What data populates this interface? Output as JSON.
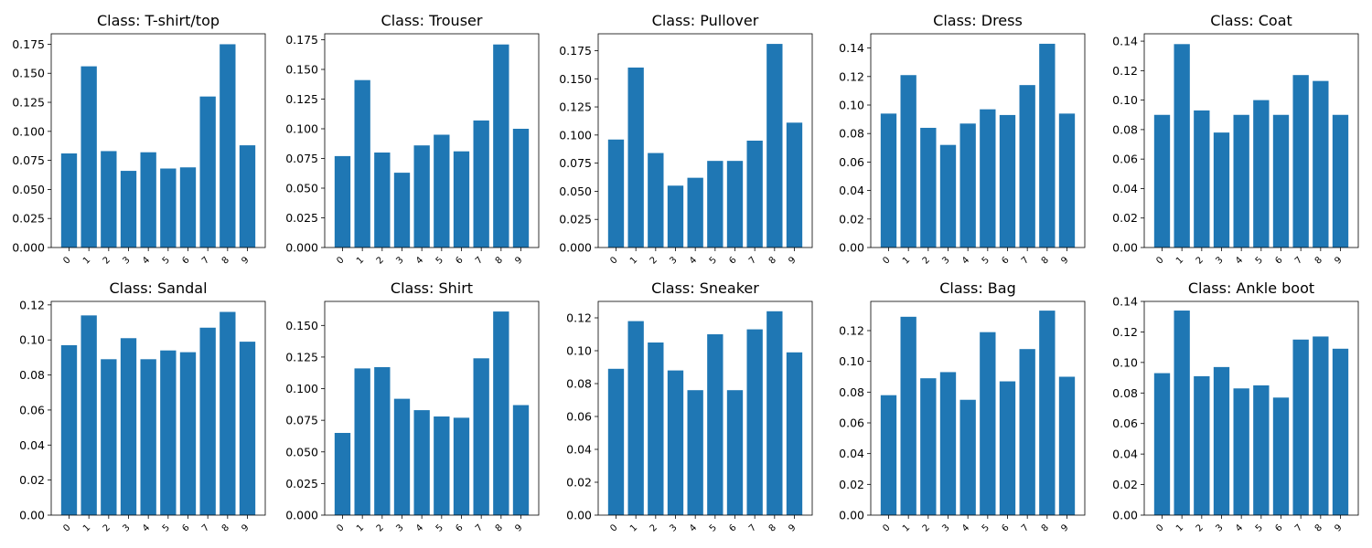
{
  "figure": {
    "background": "#ffffff",
    "bar_color": "#1f77b4"
  },
  "chart_data": [
    {
      "type": "bar",
      "title": "Class: T-shirt/top",
      "xlabel": "",
      "ylabel": "",
      "categories": [
        "0",
        "1",
        "2",
        "3",
        "4",
        "5",
        "6",
        "7",
        "8",
        "9"
      ],
      "values": [
        0.081,
        0.156,
        0.083,
        0.066,
        0.082,
        0.068,
        0.069,
        0.13,
        0.175,
        0.088
      ],
      "ylim": [
        0,
        0.184
      ],
      "yticks": [
        0.0,
        0.025,
        0.05,
        0.075,
        0.1,
        0.125,
        0.15,
        0.175
      ],
      "ytick_labels": [
        "0.000",
        "0.025",
        "0.050",
        "0.075",
        "0.100",
        "0.125",
        "0.150",
        "0.175"
      ]
    },
    {
      "type": "bar",
      "title": "Class: Trouser",
      "xlabel": "",
      "ylabel": "",
      "categories": [
        "0",
        "1",
        "2",
        "3",
        "4",
        "5",
        "6",
        "7",
        "8",
        "9"
      ],
      "values": [
        0.077,
        0.141,
        0.08,
        0.063,
        0.086,
        0.095,
        0.081,
        0.107,
        0.171,
        0.1
      ],
      "ylim": [
        0,
        0.18
      ],
      "yticks": [
        0.0,
        0.025,
        0.05,
        0.075,
        0.1,
        0.125,
        0.15,
        0.175
      ],
      "ytick_labels": [
        "0.000",
        "0.025",
        "0.050",
        "0.075",
        "0.100",
        "0.125",
        "0.150",
        "0.175"
      ]
    },
    {
      "type": "bar",
      "title": "Class: Pullover",
      "xlabel": "",
      "ylabel": "",
      "categories": [
        "0",
        "1",
        "2",
        "3",
        "4",
        "5",
        "6",
        "7",
        "8",
        "9"
      ],
      "values": [
        0.096,
        0.16,
        0.084,
        0.055,
        0.062,
        0.077,
        0.077,
        0.095,
        0.181,
        0.111
      ],
      "ylim": [
        0,
        0.19
      ],
      "yticks": [
        0.0,
        0.025,
        0.05,
        0.075,
        0.1,
        0.125,
        0.15,
        0.175
      ],
      "ytick_labels": [
        "0.000",
        "0.025",
        "0.050",
        "0.075",
        "0.100",
        "0.125",
        "0.150",
        "0.175"
      ]
    },
    {
      "type": "bar",
      "title": "Class: Dress",
      "xlabel": "",
      "ylabel": "",
      "categories": [
        "0",
        "1",
        "2",
        "3",
        "4",
        "5",
        "6",
        "7",
        "8",
        "9"
      ],
      "values": [
        0.094,
        0.121,
        0.084,
        0.072,
        0.087,
        0.097,
        0.093,
        0.114,
        0.143,
        0.094
      ],
      "ylim": [
        0,
        0.15
      ],
      "yticks": [
        0.0,
        0.02,
        0.04,
        0.06,
        0.08,
        0.1,
        0.12,
        0.14
      ],
      "ytick_labels": [
        "0.00",
        "0.02",
        "0.04",
        "0.06",
        "0.08",
        "0.10",
        "0.12",
        "0.14"
      ]
    },
    {
      "type": "bar",
      "title": "Class: Coat",
      "xlabel": "",
      "ylabel": "",
      "categories": [
        "0",
        "1",
        "2",
        "3",
        "4",
        "5",
        "6",
        "7",
        "8",
        "9"
      ],
      "values": [
        0.09,
        0.138,
        0.093,
        0.078,
        0.09,
        0.1,
        0.09,
        0.117,
        0.113,
        0.09
      ],
      "ylim": [
        0,
        0.145
      ],
      "yticks": [
        0.0,
        0.02,
        0.04,
        0.06,
        0.08,
        0.1,
        0.12,
        0.14
      ],
      "ytick_labels": [
        "0.00",
        "0.02",
        "0.04",
        "0.06",
        "0.08",
        "0.10",
        "0.12",
        "0.14"
      ]
    },
    {
      "type": "bar",
      "title": "Class: Sandal",
      "xlabel": "",
      "ylabel": "",
      "categories": [
        "0",
        "1",
        "2",
        "3",
        "4",
        "5",
        "6",
        "7",
        "8",
        "9"
      ],
      "values": [
        0.097,
        0.114,
        0.089,
        0.101,
        0.089,
        0.094,
        0.093,
        0.107,
        0.116,
        0.099
      ],
      "ylim": [
        0,
        0.122
      ],
      "yticks": [
        0.0,
        0.02,
        0.04,
        0.06,
        0.08,
        0.1,
        0.12
      ],
      "ytick_labels": [
        "0.00",
        "0.02",
        "0.04",
        "0.06",
        "0.08",
        "0.10",
        "0.12"
      ]
    },
    {
      "type": "bar",
      "title": "Class: Shirt",
      "xlabel": "",
      "ylabel": "",
      "categories": [
        "0",
        "1",
        "2",
        "3",
        "4",
        "5",
        "6",
        "7",
        "8",
        "9"
      ],
      "values": [
        0.065,
        0.116,
        0.117,
        0.092,
        0.083,
        0.078,
        0.077,
        0.124,
        0.161,
        0.087
      ],
      "ylim": [
        0,
        0.169
      ],
      "yticks": [
        0.0,
        0.025,
        0.05,
        0.075,
        0.1,
        0.125,
        0.15
      ],
      "ytick_labels": [
        "0.000",
        "0.025",
        "0.050",
        "0.075",
        "0.100",
        "0.125",
        "0.150"
      ]
    },
    {
      "type": "bar",
      "title": "Class: Sneaker",
      "xlabel": "",
      "ylabel": "",
      "categories": [
        "0",
        "1",
        "2",
        "3",
        "4",
        "5",
        "6",
        "7",
        "8",
        "9"
      ],
      "values": [
        0.089,
        0.118,
        0.105,
        0.088,
        0.076,
        0.11,
        0.076,
        0.113,
        0.124,
        0.099
      ],
      "ylim": [
        0,
        0.13
      ],
      "yticks": [
        0.0,
        0.02,
        0.04,
        0.06,
        0.08,
        0.1,
        0.12
      ],
      "ytick_labels": [
        "0.00",
        "0.02",
        "0.04",
        "0.06",
        "0.08",
        "0.10",
        "0.12"
      ]
    },
    {
      "type": "bar",
      "title": "Class: Bag",
      "xlabel": "",
      "ylabel": "",
      "categories": [
        "0",
        "1",
        "2",
        "3",
        "4",
        "5",
        "6",
        "7",
        "8",
        "9"
      ],
      "values": [
        0.078,
        0.129,
        0.089,
        0.093,
        0.075,
        0.119,
        0.087,
        0.108,
        0.133,
        0.09
      ],
      "ylim": [
        0,
        0.139
      ],
      "yticks": [
        0.0,
        0.02,
        0.04,
        0.06,
        0.08,
        0.1,
        0.12
      ],
      "ytick_labels": [
        "0.00",
        "0.02",
        "0.04",
        "0.06",
        "0.08",
        "0.10",
        "0.12"
      ]
    },
    {
      "type": "bar",
      "title": "Class: Ankle boot",
      "xlabel": "",
      "ylabel": "",
      "categories": [
        "0",
        "1",
        "2",
        "3",
        "4",
        "5",
        "6",
        "7",
        "8",
        "9"
      ],
      "values": [
        0.093,
        0.134,
        0.091,
        0.097,
        0.083,
        0.085,
        0.077,
        0.115,
        0.117,
        0.109
      ],
      "ylim": [
        0,
        0.14
      ],
      "yticks": [
        0.0,
        0.02,
        0.04,
        0.06,
        0.08,
        0.1,
        0.12,
        0.14
      ],
      "ytick_labels": [
        "0.00",
        "0.02",
        "0.04",
        "0.06",
        "0.08",
        "0.10",
        "0.12",
        "0.14"
      ]
    }
  ]
}
